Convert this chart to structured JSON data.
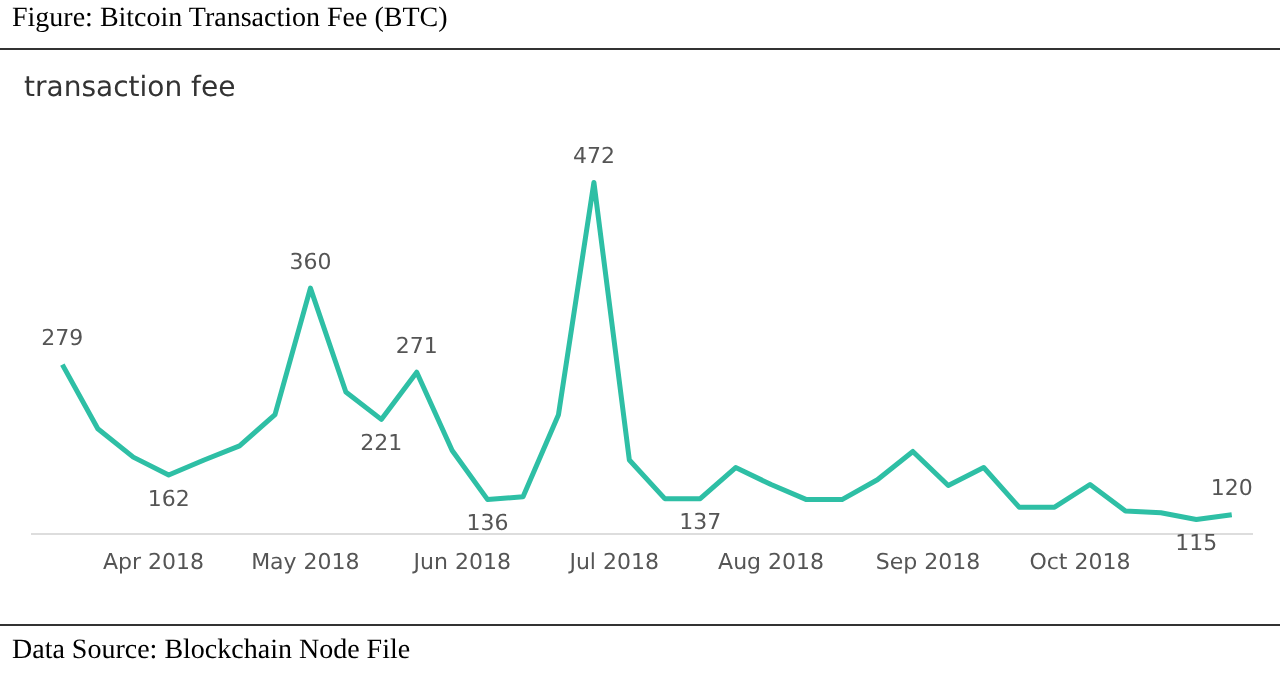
{
  "chart_data": {
    "type": "line",
    "title": "Figure: Bitcoin Transaction Fee (BTC)",
    "subtitle": "transaction fee",
    "annotations": [
      "Data Source: Blockchain Node File"
    ],
    "x": [
      "2018-03-14",
      "2018-03-21",
      "2018-03-28",
      "2018-04-04",
      "2018-04-11",
      "2018-04-18",
      "2018-04-25",
      "2018-05-02",
      "2018-05-09",
      "2018-05-16",
      "2018-05-23",
      "2018-05-30",
      "2018-06-06",
      "2018-06-13",
      "2018-06-20",
      "2018-06-27",
      "2018-07-04",
      "2018-07-11",
      "2018-07-18",
      "2018-07-25",
      "2018-08-01",
      "2018-08-08",
      "2018-08-15",
      "2018-08-22",
      "2018-08-29",
      "2018-09-05",
      "2018-09-12",
      "2018-09-19",
      "2018-09-26",
      "2018-10-03",
      "2018-10-10",
      "2018-10-17",
      "2018-10-24",
      "2018-10-31"
    ],
    "series": [
      {
        "color": "#2ebfa5",
        "values": [
          279,
          211,
          181,
          162,
          178,
          193,
          226,
          360,
          250,
          221,
          271,
          188,
          136,
          139,
          226,
          472,
          178,
          137,
          137,
          170,
          152,
          136,
          136,
          157,
          187,
          151,
          170,
          128,
          128,
          152,
          124,
          122,
          115,
          120
        ],
        "value_labels": [
          "279",
          null,
          null,
          "162",
          null,
          null,
          null,
          "360",
          null,
          "221",
          "271",
          null,
          "136",
          null,
          null,
          "472",
          null,
          null,
          "137",
          null,
          null,
          null,
          null,
          null,
          null,
          null,
          null,
          null,
          null,
          null,
          null,
          null,
          "115",
          "120"
        ]
      }
    ],
    "xticks": [
      {
        "value": "2018-04-01",
        "label": "Apr 2018"
      },
      {
        "value": "2018-05-01",
        "label": "May 2018"
      },
      {
        "value": "2018-06-01",
        "label": "Jun 2018"
      },
      {
        "value": "2018-07-01",
        "label": "Jul 2018"
      },
      {
        "value": "2018-08-01",
        "label": "Aug 2018"
      },
      {
        "value": "2018-09-01",
        "label": "Sep 2018"
      },
      {
        "value": "2018-10-01",
        "label": "Oct 2018"
      }
    ],
    "xlim": [
      "2018-03-08",
      "2018-11-04"
    ],
    "grid": false,
    "legend": false,
    "marker": "none",
    "line_style": "solid",
    "tick_labels": "x"
  }
}
